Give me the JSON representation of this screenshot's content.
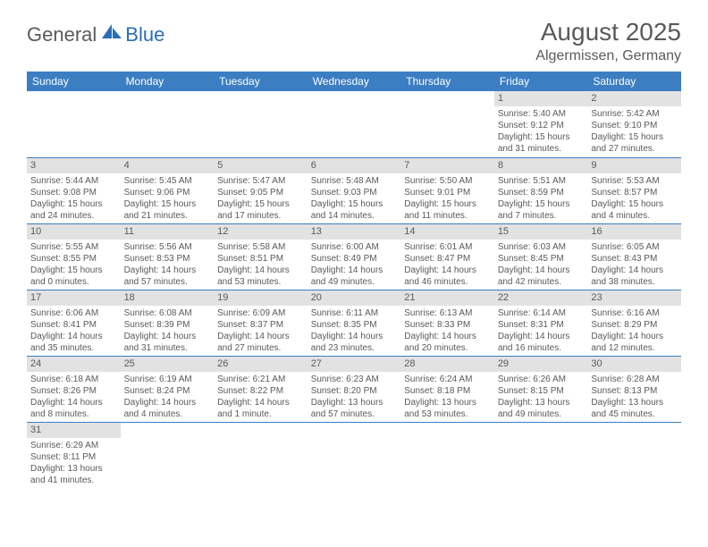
{
  "logo": {
    "text_dark": "General",
    "text_blue": "Blue"
  },
  "title": "August 2025",
  "location": "Algermissen, Germany",
  "colors": {
    "header_bg": "#3b7ec2",
    "header_fg": "#ffffff",
    "daynum_bg": "#e2e2e2",
    "text": "#5a5a5a",
    "row_border": "#3b7ec2",
    "logo_blue": "#2a6db8"
  },
  "day_headers": [
    "Sunday",
    "Monday",
    "Tuesday",
    "Wednesday",
    "Thursday",
    "Friday",
    "Saturday"
  ],
  "weeks": [
    [
      null,
      null,
      null,
      null,
      null,
      {
        "n": "1",
        "sunrise": "Sunrise: 5:40 AM",
        "sunset": "Sunset: 9:12 PM",
        "day1": "Daylight: 15 hours",
        "day2": "and 31 minutes."
      },
      {
        "n": "2",
        "sunrise": "Sunrise: 5:42 AM",
        "sunset": "Sunset: 9:10 PM",
        "day1": "Daylight: 15 hours",
        "day2": "and 27 minutes."
      }
    ],
    [
      {
        "n": "3",
        "sunrise": "Sunrise: 5:44 AM",
        "sunset": "Sunset: 9:08 PM",
        "day1": "Daylight: 15 hours",
        "day2": "and 24 minutes."
      },
      {
        "n": "4",
        "sunrise": "Sunrise: 5:45 AM",
        "sunset": "Sunset: 9:06 PM",
        "day1": "Daylight: 15 hours",
        "day2": "and 21 minutes."
      },
      {
        "n": "5",
        "sunrise": "Sunrise: 5:47 AM",
        "sunset": "Sunset: 9:05 PM",
        "day1": "Daylight: 15 hours",
        "day2": "and 17 minutes."
      },
      {
        "n": "6",
        "sunrise": "Sunrise: 5:48 AM",
        "sunset": "Sunset: 9:03 PM",
        "day1": "Daylight: 15 hours",
        "day2": "and 14 minutes."
      },
      {
        "n": "7",
        "sunrise": "Sunrise: 5:50 AM",
        "sunset": "Sunset: 9:01 PM",
        "day1": "Daylight: 15 hours",
        "day2": "and 11 minutes."
      },
      {
        "n": "8",
        "sunrise": "Sunrise: 5:51 AM",
        "sunset": "Sunset: 8:59 PM",
        "day1": "Daylight: 15 hours",
        "day2": "and 7 minutes."
      },
      {
        "n": "9",
        "sunrise": "Sunrise: 5:53 AM",
        "sunset": "Sunset: 8:57 PM",
        "day1": "Daylight: 15 hours",
        "day2": "and 4 minutes."
      }
    ],
    [
      {
        "n": "10",
        "sunrise": "Sunrise: 5:55 AM",
        "sunset": "Sunset: 8:55 PM",
        "day1": "Daylight: 15 hours",
        "day2": "and 0 minutes."
      },
      {
        "n": "11",
        "sunrise": "Sunrise: 5:56 AM",
        "sunset": "Sunset: 8:53 PM",
        "day1": "Daylight: 14 hours",
        "day2": "and 57 minutes."
      },
      {
        "n": "12",
        "sunrise": "Sunrise: 5:58 AM",
        "sunset": "Sunset: 8:51 PM",
        "day1": "Daylight: 14 hours",
        "day2": "and 53 minutes."
      },
      {
        "n": "13",
        "sunrise": "Sunrise: 6:00 AM",
        "sunset": "Sunset: 8:49 PM",
        "day1": "Daylight: 14 hours",
        "day2": "and 49 minutes."
      },
      {
        "n": "14",
        "sunrise": "Sunrise: 6:01 AM",
        "sunset": "Sunset: 8:47 PM",
        "day1": "Daylight: 14 hours",
        "day2": "and 46 minutes."
      },
      {
        "n": "15",
        "sunrise": "Sunrise: 6:03 AM",
        "sunset": "Sunset: 8:45 PM",
        "day1": "Daylight: 14 hours",
        "day2": "and 42 minutes."
      },
      {
        "n": "16",
        "sunrise": "Sunrise: 6:05 AM",
        "sunset": "Sunset: 8:43 PM",
        "day1": "Daylight: 14 hours",
        "day2": "and 38 minutes."
      }
    ],
    [
      {
        "n": "17",
        "sunrise": "Sunrise: 6:06 AM",
        "sunset": "Sunset: 8:41 PM",
        "day1": "Daylight: 14 hours",
        "day2": "and 35 minutes."
      },
      {
        "n": "18",
        "sunrise": "Sunrise: 6:08 AM",
        "sunset": "Sunset: 8:39 PM",
        "day1": "Daylight: 14 hours",
        "day2": "and 31 minutes."
      },
      {
        "n": "19",
        "sunrise": "Sunrise: 6:09 AM",
        "sunset": "Sunset: 8:37 PM",
        "day1": "Daylight: 14 hours",
        "day2": "and 27 minutes."
      },
      {
        "n": "20",
        "sunrise": "Sunrise: 6:11 AM",
        "sunset": "Sunset: 8:35 PM",
        "day1": "Daylight: 14 hours",
        "day2": "and 23 minutes."
      },
      {
        "n": "21",
        "sunrise": "Sunrise: 6:13 AM",
        "sunset": "Sunset: 8:33 PM",
        "day1": "Daylight: 14 hours",
        "day2": "and 20 minutes."
      },
      {
        "n": "22",
        "sunrise": "Sunrise: 6:14 AM",
        "sunset": "Sunset: 8:31 PM",
        "day1": "Daylight: 14 hours",
        "day2": "and 16 minutes."
      },
      {
        "n": "23",
        "sunrise": "Sunrise: 6:16 AM",
        "sunset": "Sunset: 8:29 PM",
        "day1": "Daylight: 14 hours",
        "day2": "and 12 minutes."
      }
    ],
    [
      {
        "n": "24",
        "sunrise": "Sunrise: 6:18 AM",
        "sunset": "Sunset: 8:26 PM",
        "day1": "Daylight: 14 hours",
        "day2": "and 8 minutes."
      },
      {
        "n": "25",
        "sunrise": "Sunrise: 6:19 AM",
        "sunset": "Sunset: 8:24 PM",
        "day1": "Daylight: 14 hours",
        "day2": "and 4 minutes."
      },
      {
        "n": "26",
        "sunrise": "Sunrise: 6:21 AM",
        "sunset": "Sunset: 8:22 PM",
        "day1": "Daylight: 14 hours",
        "day2": "and 1 minute."
      },
      {
        "n": "27",
        "sunrise": "Sunrise: 6:23 AM",
        "sunset": "Sunset: 8:20 PM",
        "day1": "Daylight: 13 hours",
        "day2": "and 57 minutes."
      },
      {
        "n": "28",
        "sunrise": "Sunrise: 6:24 AM",
        "sunset": "Sunset: 8:18 PM",
        "day1": "Daylight: 13 hours",
        "day2": "and 53 minutes."
      },
      {
        "n": "29",
        "sunrise": "Sunrise: 6:26 AM",
        "sunset": "Sunset: 8:15 PM",
        "day1": "Daylight: 13 hours",
        "day2": "and 49 minutes."
      },
      {
        "n": "30",
        "sunrise": "Sunrise: 6:28 AM",
        "sunset": "Sunset: 8:13 PM",
        "day1": "Daylight: 13 hours",
        "day2": "and 45 minutes."
      }
    ],
    [
      {
        "n": "31",
        "sunrise": "Sunrise: 6:29 AM",
        "sunset": "Sunset: 8:11 PM",
        "day1": "Daylight: 13 hours",
        "day2": "and 41 minutes."
      },
      null,
      null,
      null,
      null,
      null,
      null
    ]
  ]
}
